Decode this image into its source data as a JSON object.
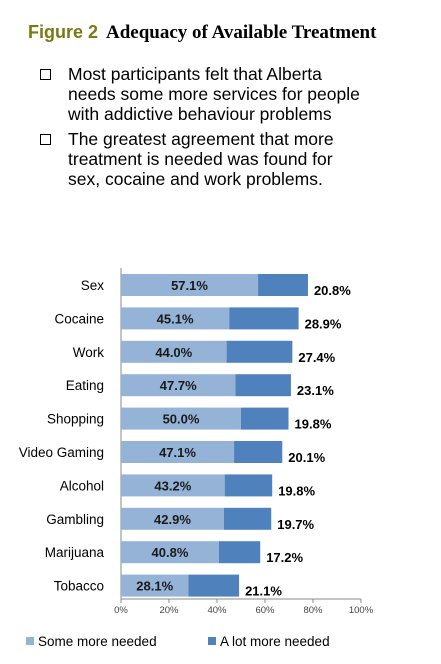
{
  "title": {
    "figure_label": "Figure 2",
    "text": "Adequacy of Available Treatment"
  },
  "bullets": [
    "Most participants felt that Alberta needs some more services for people with addictive behaviour problems",
    "The greatest agreement that more treatment is needed was found for sex, cocaine and work problems."
  ],
  "chart_data": {
    "type": "bar",
    "orientation": "horizontal",
    "stacked": true,
    "categories": [
      "Sex",
      "Cocaine",
      "Work",
      "Eating",
      "Shopping",
      "Video Gaming",
      "Alcohol",
      "Gambling",
      "Marijuana",
      "Tobacco"
    ],
    "series": [
      {
        "name": "Some  more needed",
        "color": "#95b3d7",
        "values": [
          57.1,
          45.1,
          44.0,
          47.7,
          50.0,
          47.1,
          43.2,
          42.9,
          40.8,
          28.1
        ],
        "labels": [
          "57.1%",
          "45.1%",
          "44.0%",
          "47.7%",
          "50.0%",
          "47.1%",
          "43.2%",
          "42.9%",
          "40.8%",
          "28.1%"
        ]
      },
      {
        "name": "A lot more needed",
        "color": "#4f81bd",
        "values": [
          20.8,
          28.9,
          27.4,
          23.1,
          19.8,
          20.1,
          19.8,
          19.7,
          17.2,
          21.1
        ],
        "labels": [
          "20.8%",
          "28.9%",
          "27.4%",
          "23.1%",
          "19.8%",
          "20.1%",
          "19.8%",
          "19.7%",
          "17.2%",
          "21.1%"
        ]
      }
    ],
    "xlim": [
      0,
      100
    ],
    "xticks": [
      "0%",
      "20%",
      "40%",
      "60%",
      "80%",
      "100%"
    ],
    "grid": false,
    "legend": "bottom"
  }
}
